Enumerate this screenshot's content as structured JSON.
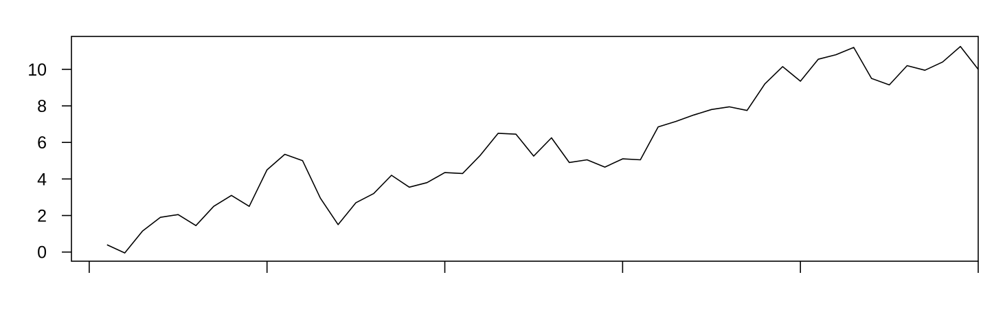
{
  "chart_data": {
    "type": "line",
    "title": "",
    "xlabel": "",
    "ylabel": "",
    "xlim": [
      -1,
      50
    ],
    "ylim": [
      -0.5,
      11.8
    ],
    "x_ticks": [
      0,
      10,
      20,
      30,
      40,
      50
    ],
    "x_tick_labels": [
      "",
      "",
      "",
      "",
      "",
      ""
    ],
    "y_ticks": [
      0,
      2,
      4,
      6,
      8,
      10
    ],
    "y_tick_labels": [
      "0",
      "2",
      "4",
      "6",
      "8",
      "10"
    ],
    "grid": false,
    "legend": "none",
    "line_color": "#000000",
    "series": [
      {
        "x": [
          1,
          2,
          3,
          4,
          5,
          6,
          7,
          8,
          9,
          10,
          11,
          12,
          13,
          14,
          15,
          16,
          17,
          18,
          19,
          20,
          21,
          22,
          23,
          24,
          25,
          26,
          27,
          28,
          29,
          30,
          31,
          32,
          33,
          34,
          35,
          36,
          37,
          38,
          39,
          40,
          41,
          42,
          43,
          44,
          45,
          46,
          47,
          48,
          49,
          50
        ],
        "values": [
          0.4,
          -0.05,
          1.15,
          1.9,
          2.05,
          1.45,
          2.5,
          3.1,
          2.5,
          4.5,
          5.35,
          5.0,
          2.95,
          1.5,
          2.7,
          3.2,
          4.2,
          3.55,
          3.8,
          4.35,
          4.3,
          5.3,
          6.5,
          6.45,
          5.25,
          6.25,
          4.9,
          5.05,
          4.65,
          5.1,
          5.05,
          6.85,
          7.15,
          7.5,
          7.8,
          7.95,
          7.75,
          9.2,
          10.15,
          9.35,
          10.55,
          10.8,
          11.2,
          9.5,
          9.15,
          10.2,
          9.95,
          10.4,
          11.25,
          10.0
        ]
      }
    ]
  }
}
